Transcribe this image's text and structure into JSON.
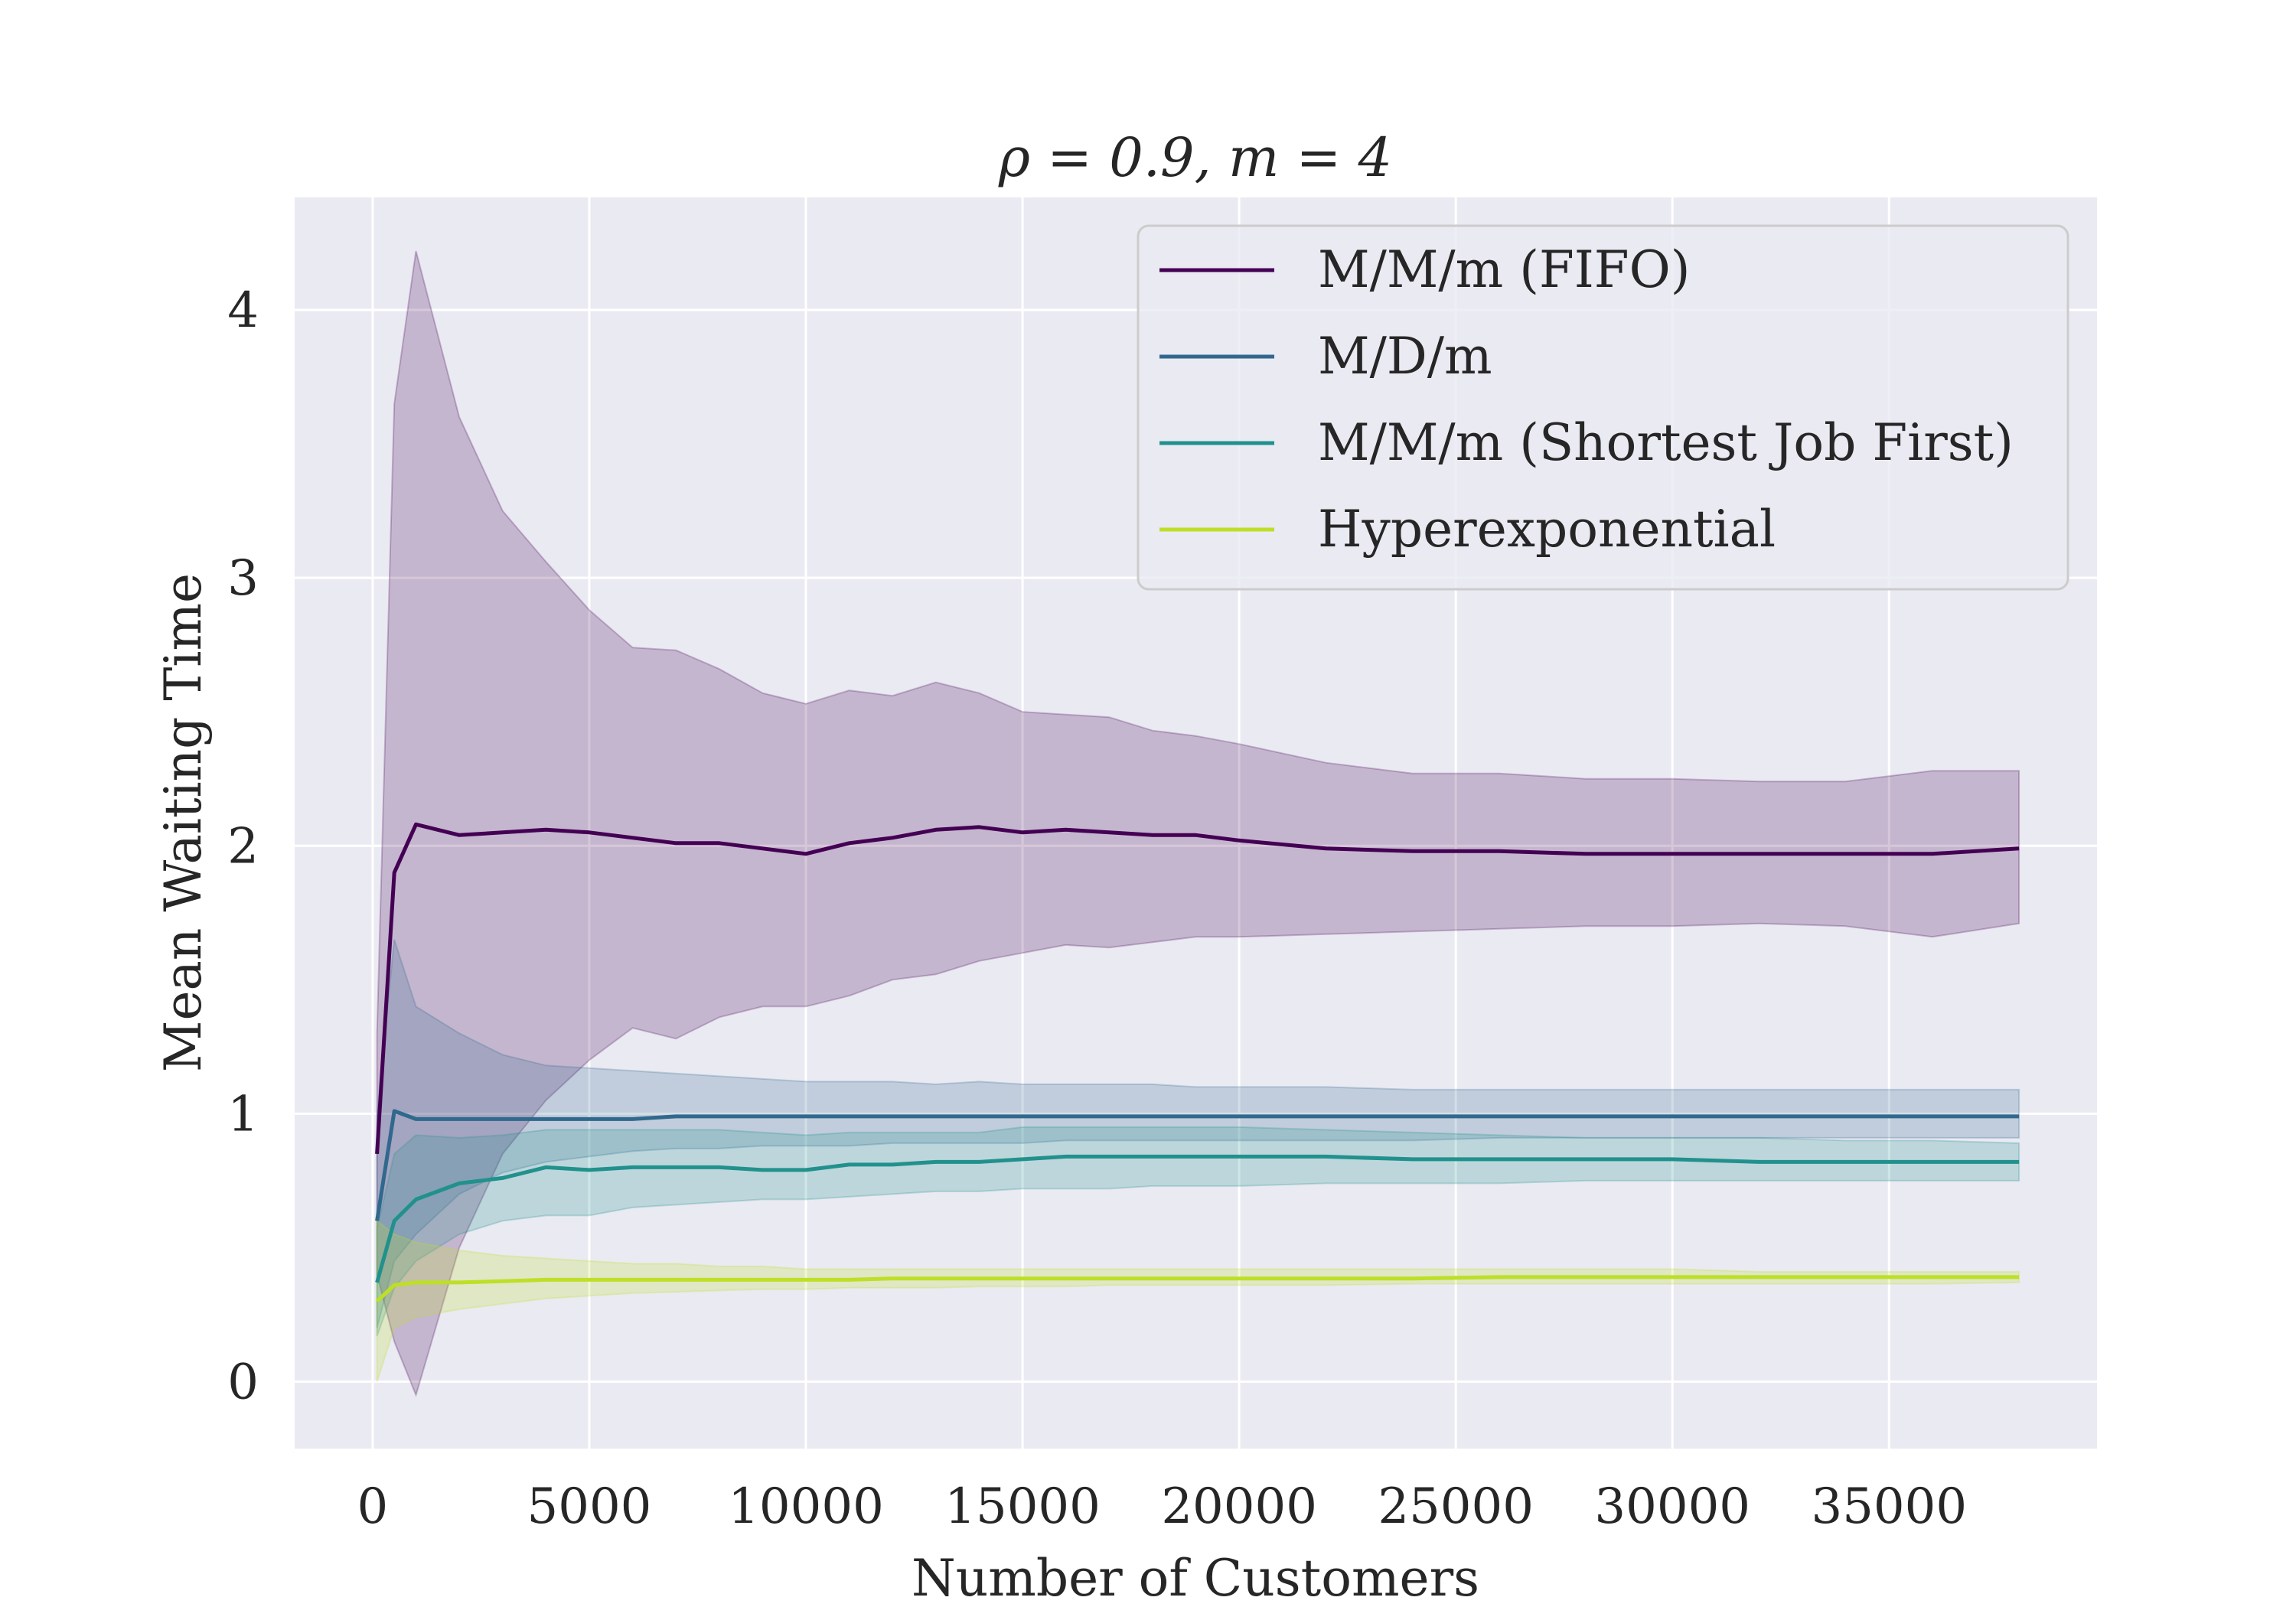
{
  "chart_data": {
    "type": "line",
    "title": "ρ = 0.9, m = 4",
    "xlabel": "Number of Customers",
    "ylabel": "Mean Waiting Time",
    "xlim": [
      -1800,
      39800
    ],
    "ylim": [
      -0.25,
      4.42
    ],
    "x_ticks": [
      0,
      5000,
      10000,
      15000,
      20000,
      25000,
      30000,
      35000
    ],
    "y_ticks": [
      0,
      1,
      2,
      3,
      4
    ],
    "grid": true,
    "legend_position": "upper-right",
    "series": [
      {
        "name": "M/M/m (FIFO)",
        "color": "#440154",
        "x": [
          100,
          500,
          1000,
          2000,
          3000,
          4000,
          5000,
          6000,
          7000,
          8000,
          9000,
          10000,
          11000,
          12000,
          13000,
          14000,
          15000,
          16000,
          17000,
          18000,
          19000,
          20000,
          22000,
          24000,
          26000,
          28000,
          30000,
          32000,
          34000,
          36000,
          38000
        ],
        "y": [
          0.85,
          1.9,
          2.08,
          2.04,
          2.05,
          2.06,
          2.05,
          2.03,
          2.01,
          2.01,
          1.99,
          1.97,
          2.01,
          2.03,
          2.06,
          2.07,
          2.05,
          2.06,
          2.05,
          2.04,
          2.04,
          2.02,
          1.99,
          1.98,
          1.98,
          1.97,
          1.97,
          1.97,
          1.97,
          1.97,
          1.99
        ],
        "lower": [
          0.4,
          0.15,
          -0.05,
          0.5,
          0.85,
          1.05,
          1.2,
          1.32,
          1.28,
          1.36,
          1.4,
          1.4,
          1.44,
          1.5,
          1.52,
          1.57,
          1.6,
          1.63,
          1.62,
          1.64,
          1.66,
          1.66,
          1.67,
          1.68,
          1.69,
          1.7,
          1.7,
          1.71,
          1.7,
          1.66,
          1.71
        ],
        "upper": [
          1.3,
          3.65,
          4.22,
          3.6,
          3.25,
          3.06,
          2.88,
          2.74,
          2.73,
          2.66,
          2.57,
          2.53,
          2.58,
          2.56,
          2.61,
          2.57,
          2.5,
          2.49,
          2.48,
          2.43,
          2.41,
          2.38,
          2.31,
          2.27,
          2.27,
          2.25,
          2.25,
          2.24,
          2.24,
          2.28,
          2.28
        ]
      },
      {
        "name": "M/D/m",
        "color": "#31688e",
        "x": [
          100,
          500,
          1000,
          2000,
          3000,
          4000,
          5000,
          6000,
          7000,
          8000,
          9000,
          10000,
          11000,
          12000,
          13000,
          14000,
          15000,
          16000,
          17000,
          18000,
          19000,
          20000,
          22000,
          24000,
          26000,
          28000,
          30000,
          32000,
          34000,
          36000,
          38000
        ],
        "y": [
          0.6,
          1.01,
          0.98,
          0.98,
          0.98,
          0.98,
          0.98,
          0.98,
          0.99,
          0.99,
          0.99,
          0.99,
          0.99,
          0.99,
          0.99,
          0.99,
          0.99,
          0.99,
          0.99,
          0.99,
          0.99,
          0.99,
          0.99,
          0.99,
          0.99,
          0.99,
          0.99,
          0.99,
          0.99,
          0.99,
          0.99
        ],
        "lower": [
          0.2,
          0.45,
          0.55,
          0.7,
          0.78,
          0.82,
          0.84,
          0.86,
          0.87,
          0.87,
          0.88,
          0.88,
          0.88,
          0.89,
          0.89,
          0.89,
          0.89,
          0.9,
          0.9,
          0.9,
          0.9,
          0.9,
          0.9,
          0.9,
          0.91,
          0.91,
          0.91,
          0.91,
          0.91,
          0.91,
          0.91
        ],
        "upper": [
          1.0,
          1.65,
          1.4,
          1.3,
          1.22,
          1.18,
          1.17,
          1.16,
          1.15,
          1.14,
          1.13,
          1.12,
          1.12,
          1.12,
          1.11,
          1.12,
          1.11,
          1.11,
          1.11,
          1.11,
          1.1,
          1.1,
          1.1,
          1.09,
          1.09,
          1.09,
          1.09,
          1.09,
          1.09,
          1.09,
          1.09
        ]
      },
      {
        "name": "M/M/m (Shortest Job First)",
        "color": "#21918c",
        "x": [
          100,
          500,
          1000,
          2000,
          3000,
          4000,
          5000,
          6000,
          7000,
          8000,
          9000,
          10000,
          11000,
          12000,
          13000,
          14000,
          15000,
          16000,
          17000,
          18000,
          19000,
          20000,
          22000,
          24000,
          26000,
          28000,
          30000,
          32000,
          34000,
          36000,
          38000
        ],
        "y": [
          0.37,
          0.6,
          0.68,
          0.74,
          0.76,
          0.8,
          0.79,
          0.8,
          0.8,
          0.8,
          0.79,
          0.79,
          0.81,
          0.81,
          0.82,
          0.82,
          0.83,
          0.84,
          0.84,
          0.84,
          0.84,
          0.84,
          0.84,
          0.83,
          0.83,
          0.83,
          0.83,
          0.82,
          0.82,
          0.82,
          0.82
        ],
        "lower": [
          0.17,
          0.35,
          0.45,
          0.55,
          0.6,
          0.62,
          0.62,
          0.65,
          0.66,
          0.67,
          0.68,
          0.68,
          0.69,
          0.7,
          0.71,
          0.71,
          0.72,
          0.72,
          0.72,
          0.73,
          0.73,
          0.73,
          0.74,
          0.74,
          0.74,
          0.75,
          0.75,
          0.75,
          0.75,
          0.75,
          0.75
        ],
        "upper": [
          0.57,
          0.85,
          0.92,
          0.91,
          0.92,
          0.94,
          0.94,
          0.94,
          0.94,
          0.94,
          0.93,
          0.92,
          0.93,
          0.93,
          0.93,
          0.93,
          0.95,
          0.95,
          0.95,
          0.95,
          0.95,
          0.95,
          0.94,
          0.93,
          0.92,
          0.91,
          0.91,
          0.91,
          0.9,
          0.9,
          0.89
        ]
      },
      {
        "name": "Hyperexponential",
        "color": "#bddf26",
        "x": [
          100,
          500,
          1000,
          2000,
          3000,
          4000,
          5000,
          6000,
          7000,
          8000,
          9000,
          10000,
          11000,
          12000,
          13000,
          14000,
          15000,
          16000,
          17000,
          18000,
          19000,
          20000,
          22000,
          24000,
          26000,
          28000,
          30000,
          32000,
          34000,
          36000,
          38000
        ],
        "y": [
          0.3,
          0.36,
          0.37,
          0.37,
          0.375,
          0.38,
          0.38,
          0.38,
          0.38,
          0.38,
          0.38,
          0.38,
          0.38,
          0.385,
          0.385,
          0.385,
          0.385,
          0.385,
          0.385,
          0.385,
          0.385,
          0.385,
          0.385,
          0.385,
          0.39,
          0.39,
          0.39,
          0.39,
          0.39,
          0.39,
          0.39
        ],
        "lower": [
          0.0,
          0.2,
          0.24,
          0.27,
          0.29,
          0.31,
          0.32,
          0.33,
          0.335,
          0.34,
          0.345,
          0.345,
          0.35,
          0.35,
          0.35,
          0.355,
          0.355,
          0.355,
          0.36,
          0.36,
          0.36,
          0.36,
          0.36,
          0.365,
          0.365,
          0.365,
          0.365,
          0.365,
          0.365,
          0.365,
          0.37
        ],
        "upper": [
          0.6,
          0.55,
          0.52,
          0.49,
          0.47,
          0.46,
          0.45,
          0.44,
          0.44,
          0.43,
          0.43,
          0.42,
          0.42,
          0.42,
          0.42,
          0.42,
          0.42,
          0.42,
          0.42,
          0.42,
          0.42,
          0.42,
          0.42,
          0.42,
          0.42,
          0.42,
          0.42,
          0.41,
          0.41,
          0.41,
          0.41
        ]
      }
    ]
  }
}
